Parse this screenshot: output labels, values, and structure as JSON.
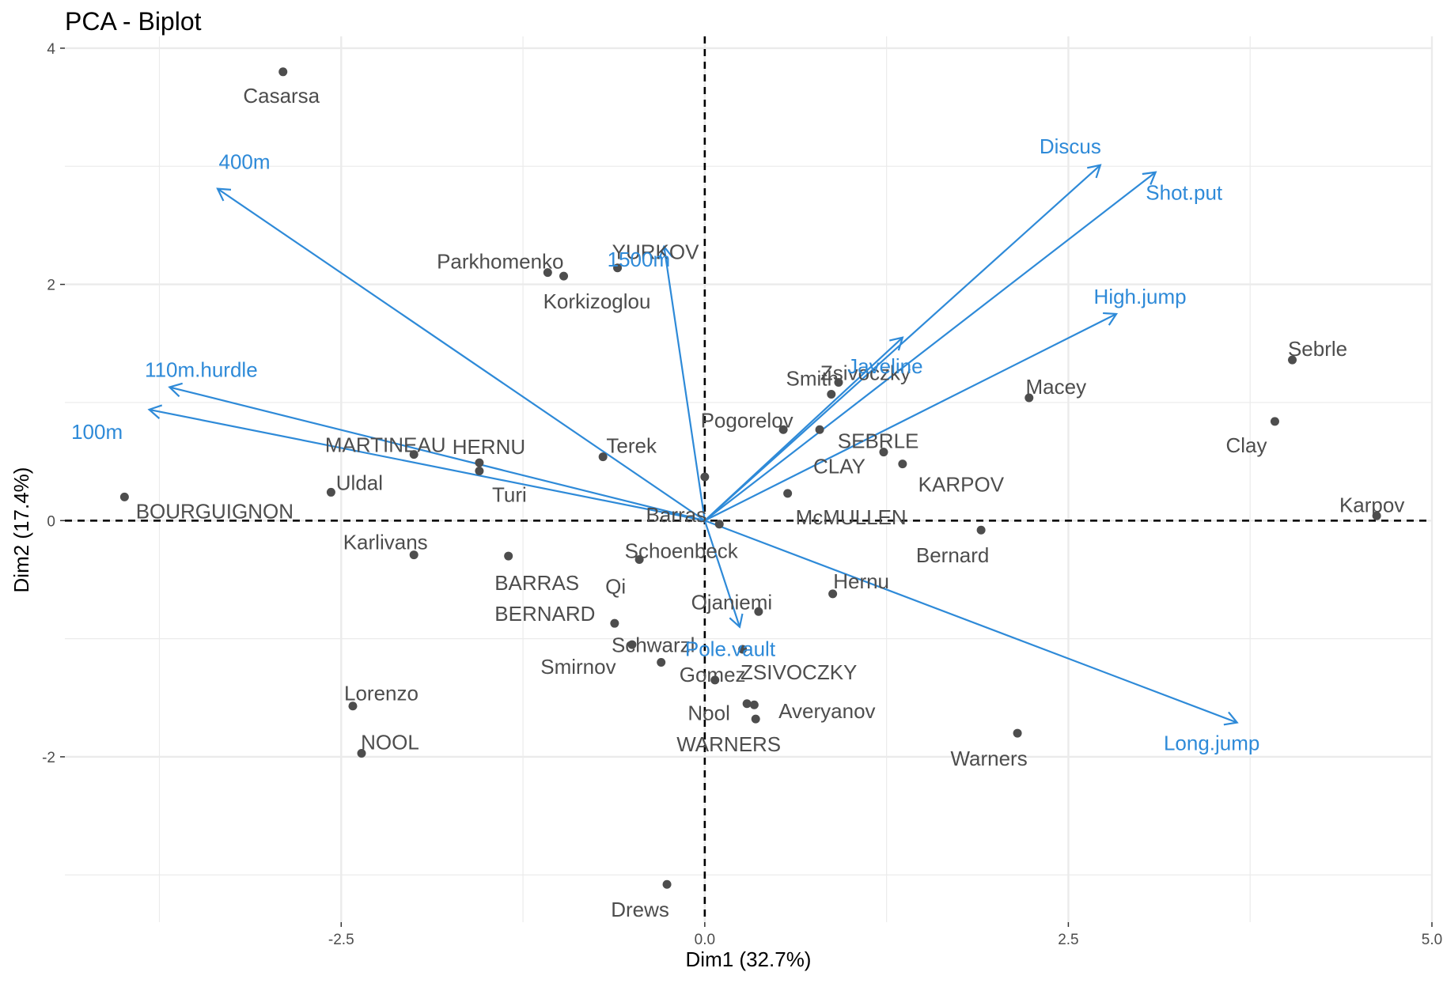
{
  "chart_data": {
    "type": "scatter",
    "title": "PCA - Biplot",
    "xlabel": "Dim1 (32.7%)",
    "ylabel": "Dim2 (17.4%)",
    "xlim": [
      -4.4,
      5.0
    ],
    "ylim": [
      -3.4,
      4.1
    ],
    "x_ticks": [
      -2.5,
      0.0,
      2.5,
      5.0
    ],
    "x_tick_labels": [
      "-2.5",
      "0.0",
      "2.5",
      "5.0"
    ],
    "y_ticks": [
      -2,
      0,
      2,
      4
    ],
    "y_tick_labels": [
      "-2",
      "0",
      "2",
      "4"
    ],
    "grid": true,
    "reference_lines": [
      {
        "axis": "x",
        "value": 0,
        "style": "dashed"
      },
      {
        "axis": "y",
        "value": 0,
        "style": "dashed"
      }
    ],
    "colors": {
      "individuals": "#4d4d4d",
      "variables": "#2e8ad8",
      "grid": "#ebebeb",
      "reference": "#000000"
    },
    "individuals": [
      {
        "name": "Casarsa",
        "x": -2.9,
        "y": 3.8
      },
      {
        "name": "Parkhomenko",
        "x": -1.08,
        "y": 2.1
      },
      {
        "name": "Korkizoglou",
        "x": -0.97,
        "y": 2.07
      },
      {
        "name": "YURKOV",
        "x": -0.6,
        "y": 2.14
      },
      {
        "name": "Zsivoczky",
        "x": 0.92,
        "y": 1.17
      },
      {
        "name": "Smith",
        "x": 0.87,
        "y": 1.07
      },
      {
        "name": "Macey",
        "x": 2.23,
        "y": 1.04
      },
      {
        "name": "Sebrle",
        "x": 4.04,
        "y": 1.36
      },
      {
        "name": "Clay",
        "x": 3.92,
        "y": 0.84
      },
      {
        "name": "Karpov",
        "x": 4.62,
        "y": 0.04
      },
      {
        "name": "SEBRLE",
        "x": 0.79,
        "y": 0.77
      },
      {
        "name": "Terek",
        "x": -0.7,
        "y": 0.54
      },
      {
        "name": "Pogorelov",
        "x": 0.54,
        "y": 0.77
      },
      {
        "name": "CLAY",
        "x": 1.23,
        "y": 0.58
      },
      {
        "name": "KARPOV",
        "x": 1.36,
        "y": 0.48
      },
      {
        "name": "MARTINEAU",
        "x": -2.0,
        "y": 0.56
      },
      {
        "name": "HERNU",
        "x": -1.55,
        "y": 0.49
      },
      {
        "name": "Turi",
        "x": -1.55,
        "y": 0.42
      },
      {
        "name": "Uldal",
        "x": -2.57,
        "y": 0.24
      },
      {
        "name": "BOURGUIGNON",
        "x": -3.99,
        "y": 0.2
      },
      {
        "name": "Barras",
        "x": 0.0,
        "y": 0.37
      },
      {
        "name": "McMULLEN",
        "x": 0.57,
        "y": 0.23
      },
      {
        "name": "Schoenbeck",
        "x": 0.1,
        "y": -0.03
      },
      {
        "name": "Bernard",
        "x": 1.9,
        "y": -0.08
      },
      {
        "name": "Karlivans",
        "x": -2.0,
        "y": -0.29
      },
      {
        "name": "BARRAS",
        "x": -1.35,
        "y": -0.3
      },
      {
        "name": "Qi",
        "x": -0.45,
        "y": -0.33
      },
      {
        "name": "Hernu",
        "x": 0.88,
        "y": -0.62
      },
      {
        "name": "Ojaniemi",
        "x": 0.37,
        "y": -0.77
      },
      {
        "name": "BERNARD",
        "x": -0.62,
        "y": -0.87
      },
      {
        "name": "Smirnov",
        "x": -0.5,
        "y": -1.05
      },
      {
        "name": "Schwarzl",
        "x": -0.3,
        "y": -1.2
      },
      {
        "name": "Gomez",
        "x": 0.26,
        "y": -1.09
      },
      {
        "name": "ZSIVOCZKY",
        "x": 0.07,
        "y": -1.35
      },
      {
        "name": "Lorenzo",
        "x": -2.42,
        "y": -1.57
      },
      {
        "name": "NOOL",
        "x": -2.36,
        "y": -1.97
      },
      {
        "name": "Nool",
        "x": 0.29,
        "y": -1.55
      },
      {
        "name": "Averyanov",
        "x": 0.34,
        "y": -1.56
      },
      {
        "name": "WARNERS",
        "x": 0.35,
        "y": -1.68
      },
      {
        "name": "Warners",
        "x": 2.15,
        "y": -1.8
      },
      {
        "name": "Drews",
        "x": -0.26,
        "y": -3.08
      }
    ],
    "variables": [
      {
        "name": "Discus",
        "x": 2.72,
        "y": 3.01
      },
      {
        "name": "Shot.put",
        "x": 3.1,
        "y": 2.95
      },
      {
        "name": "High.jump",
        "x": 2.83,
        "y": 1.75
      },
      {
        "name": "Javeline",
        "x": 1.36,
        "y": 1.55
      },
      {
        "name": "400m",
        "x": -3.35,
        "y": 2.81
      },
      {
        "name": "1500m",
        "x": -0.28,
        "y": 2.32
      },
      {
        "name": "110m.hurdle",
        "x": -3.68,
        "y": 1.13
      },
      {
        "name": "100m",
        "x": -3.82,
        "y": 0.94
      },
      {
        "name": "Pole.vault",
        "x": 0.24,
        "y": -0.9
      },
      {
        "name": "Long.jump",
        "x": 3.66,
        "y": -1.71
      }
    ]
  }
}
